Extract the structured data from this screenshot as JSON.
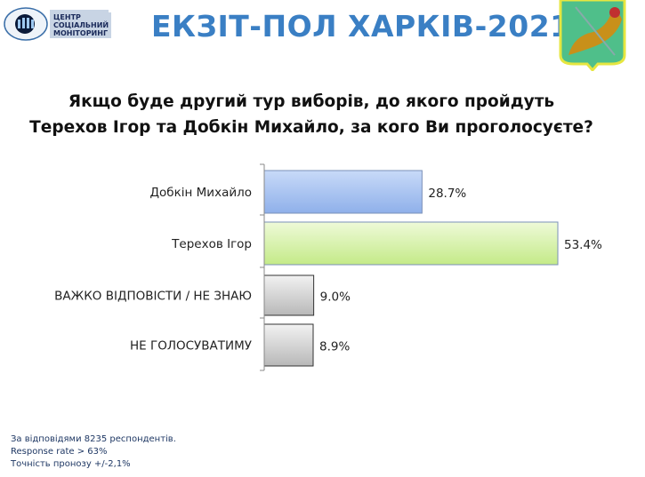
{
  "header": {
    "title": "ЕКЗІТ-ПОЛ ХАРКІВ-2021",
    "logo_text": [
      "ЦЕНТР",
      "СОЦІАЛЬНИЙ",
      "МОНІТОРИНГ"
    ]
  },
  "question": [
    "Якщо буде другий тур виборів, до якого пройдуть",
    "Терехов Ігор та Добкін Михайло, за кого Ви проголосуєте?"
  ],
  "chart_data": {
    "type": "bar",
    "orientation": "horizontal",
    "categories": [
      "Добкін Михайло",
      "Терехов Ігор",
      "ВАЖКО ВІДПОВІСТИ / НЕ ЗНАЮ",
      "НЕ ГОЛОСУВАТИМУ"
    ],
    "values": [
      28.7,
      53.4,
      9.0,
      8.9
    ],
    "labels": [
      "28.7%",
      "53.4%",
      "9.0%",
      "8.9%"
    ],
    "colors": [
      "#a9c4f2",
      "#d6f2a8",
      "#d0d0d0",
      "#d0d0d0"
    ],
    "grid": false
  },
  "notes": [
    "За відповідями 8235 респондентів.",
    "Response rate > 63%",
    "Точність пронозу  +/-2,1%"
  ]
}
